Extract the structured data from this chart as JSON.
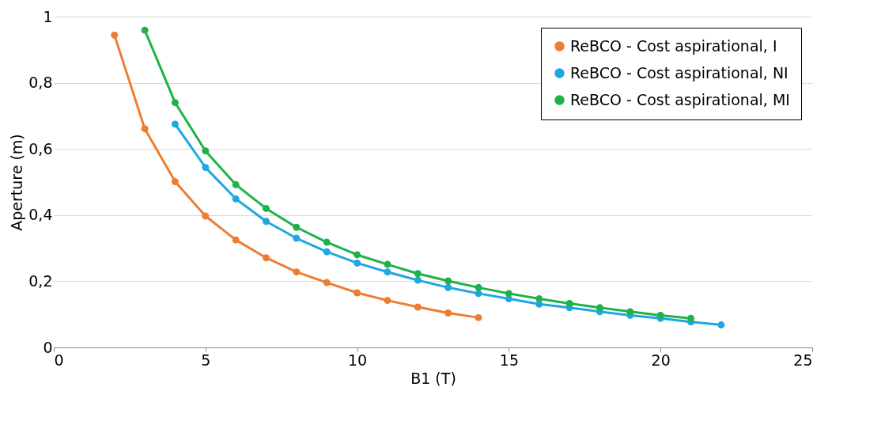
{
  "chart_data": {
    "type": "line",
    "xlabel": "B1 (T)",
    "ylabel": "Aperture (m)",
    "xlim": [
      0,
      25
    ],
    "xticks": [
      0,
      5,
      10,
      15,
      20,
      25
    ],
    "ylim": [
      0,
      1
    ],
    "yticks": [
      0,
      {
        "value": 0.2,
        "label": "0,2"
      },
      {
        "value": 0.4,
        "label": "0,4"
      },
      {
        "value": 0.6,
        "label": "0,6"
      },
      {
        "value": 0.8,
        "label": "0,8"
      },
      1
    ],
    "grid": "y",
    "legend": "top right",
    "marker": "circle",
    "line_style": "solid",
    "series": [
      {
        "name": "ReBCO - Cost aspirational, I",
        "color": "#ed7d31",
        "x": [
          2,
          3,
          4,
          5,
          6,
          7,
          8,
          9,
          10,
          11,
          12,
          13,
          14
        ],
        "values": [
          0.944,
          0.661,
          0.501,
          0.397,
          0.325,
          0.271,
          0.228,
          0.196,
          0.165,
          0.142,
          0.122,
          0.104,
          0.09
        ]
      },
      {
        "name": "ReBCO - Cost aspirational, NI",
        "color": "#1ea7e1",
        "x": [
          4,
          5,
          6,
          7,
          8,
          9,
          10,
          11,
          12,
          13,
          14,
          15,
          16,
          17,
          18,
          19,
          20,
          21,
          22
        ],
        "values": [
          0.675,
          0.544,
          0.449,
          0.381,
          0.33,
          0.289,
          0.255,
          0.228,
          0.203,
          0.181,
          0.163,
          0.147,
          0.131,
          0.12,
          0.108,
          0.097,
          0.088,
          0.077,
          0.068
        ]
      },
      {
        "name": "ReBCO - Cost aspirational, MI",
        "color": "#1fb24a",
        "x": [
          3,
          4,
          5,
          6,
          7,
          8,
          9,
          10,
          11,
          12,
          13,
          14,
          15,
          16,
          17,
          18,
          19,
          20,
          21
        ],
        "values": [
          0.959,
          0.74,
          0.594,
          0.492,
          0.42,
          0.363,
          0.318,
          0.28,
          0.251,
          0.223,
          0.201,
          0.181,
          0.163,
          0.147,
          0.133,
          0.12,
          0.108,
          0.097,
          0.088
        ]
      }
    ]
  }
}
